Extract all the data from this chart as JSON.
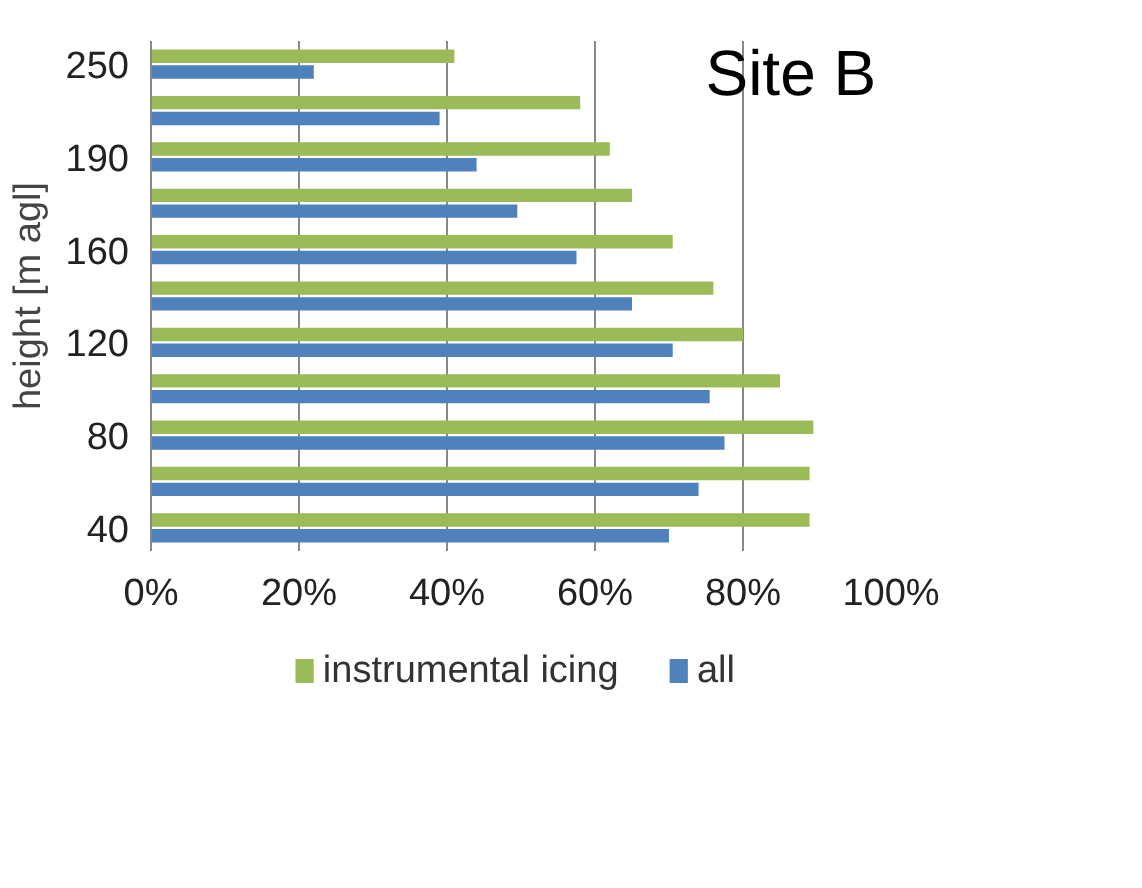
{
  "chart_data": {
    "type": "bar",
    "orientation": "horizontal",
    "ylabel": "height [m agl]",
    "categories": [
      "250",
      null,
      "190",
      null,
      "160",
      null,
      "120",
      null,
      "80",
      null,
      "40"
    ],
    "series": [
      {
        "name": "instrumental icing",
        "color": "#9bbb59",
        "values": [
          41,
          58,
          62,
          65,
          70.5,
          76,
          80,
          85,
          89.5,
          89,
          89
        ]
      },
      {
        "name": "all",
        "color": "#4f81bd",
        "values": [
          22,
          39,
          44,
          49.5,
          57.5,
          65,
          70.5,
          75.5,
          77.5,
          74,
          70
        ]
      }
    ],
    "xlim": [
      0,
      100
    ],
    "xticks": [
      {
        "value": 0,
        "label": "0%"
      },
      {
        "value": 20,
        "label": "20%"
      },
      {
        "value": 40,
        "label": "40%"
      },
      {
        "value": 60,
        "label": "60%"
      },
      {
        "value": 80,
        "label": "80%"
      },
      {
        "value": 100,
        "label": "100%"
      }
    ],
    "grid": "x",
    "legend": "bottom",
    "annotations": [
      "Site B"
    ]
  }
}
